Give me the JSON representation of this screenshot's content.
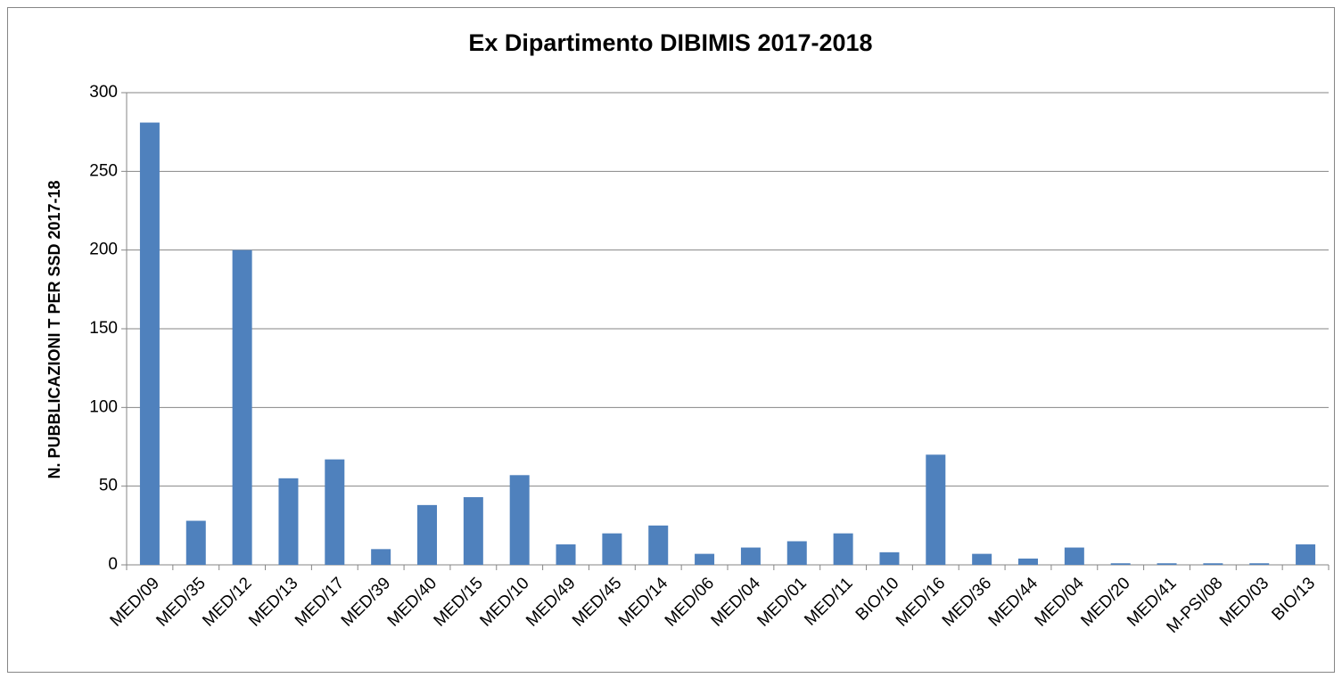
{
  "chart_data": {
    "type": "bar",
    "title": "Ex Dipartimento DIBIMIS 2017-2018",
    "y_label": "N. PUBBLICAZIONI  T PER SSD 2017-18",
    "categories": [
      "MED/09",
      "MED/35",
      "MED/12",
      "MED/13",
      "MED/17",
      "MED/39",
      "MED/40",
      "MED/15",
      "MED/10",
      "MED/49",
      "MED/45",
      "MED/14",
      "MED/06",
      "MED/04",
      "MED/01",
      "MED/11",
      "BIO/10",
      "MED/16",
      "MED/36",
      "MED/44",
      "MED/04",
      "MED/20",
      "MED/41",
      "M-PSI/08",
      "MED/03",
      "BIO/13"
    ],
    "values": [
      281,
      28,
      200,
      55,
      67,
      10,
      38,
      43,
      57,
      13,
      20,
      25,
      7,
      11,
      15,
      20,
      8,
      70,
      7,
      4,
      11,
      1,
      1,
      1,
      1,
      13
    ],
    "color": "#4f81bd",
    "ylim": [
      0,
      300
    ],
    "yticks": [
      0,
      50,
      100,
      150,
      200,
      250,
      300
    ],
    "grid": true
  }
}
